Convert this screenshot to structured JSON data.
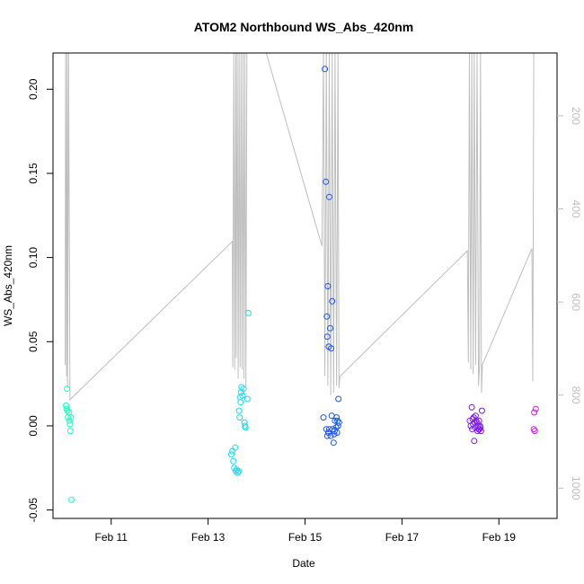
{
  "chart_data": {
    "type": "scatter",
    "title": "ATOM2 Northbound WS_Abs_420nm",
    "xlabel": "Date",
    "ylabel": "WS_Abs_420nm",
    "x_ticks": [
      {
        "value": 11,
        "label": "Feb 11"
      },
      {
        "value": 13,
        "label": "Feb 13"
      },
      {
        "value": 15,
        "label": "Feb 15"
      },
      {
        "value": 17,
        "label": "Feb 17"
      },
      {
        "value": 19,
        "label": "Feb 19"
      }
    ],
    "y_ticks": [
      {
        "value": -0.05,
        "label": "-0.05"
      },
      {
        "value": 0.0,
        "label": "0.00"
      },
      {
        "value": 0.05,
        "label": "0.05"
      },
      {
        "value": 0.1,
        "label": "0.10"
      },
      {
        "value": 0.15,
        "label": "0.15"
      },
      {
        "value": 0.2,
        "label": "0.20"
      }
    ],
    "y2_ticks": [
      {
        "value": 200,
        "label": "200"
      },
      {
        "value": 400,
        "label": "400"
      },
      {
        "value": 600,
        "label": "600"
      },
      {
        "value": 800,
        "label": "800"
      },
      {
        "value": 1000,
        "label": "1000"
      }
    ],
    "xlim": [
      9.8,
      20.2
    ],
    "ylim": [
      -0.055,
      0.2215
    ],
    "y2lim": [
      1065,
      65
    ],
    "grid": false,
    "secondary_color": "#bebebe",
    "point_groups": [
      {
        "color": "#1AFFBF",
        "points": [
          [
            10.07,
            0.012
          ],
          [
            10.08,
            0.01
          ],
          [
            10.09,
            0.022
          ],
          [
            10.1,
            0.009
          ],
          [
            10.11,
            0.005
          ],
          [
            10.13,
            0.008
          ],
          [
            10.14,
            0.003
          ],
          [
            10.15,
            0.001
          ],
          [
            10.16,
            -0.003
          ],
          [
            10.17,
            0.005
          ],
          [
            10.18,
            -0.044
          ]
        ]
      },
      {
        "color": "#1ADBF2",
        "points": [
          [
            13.48,
            -0.017
          ],
          [
            13.5,
            -0.015
          ],
          [
            13.52,
            -0.021
          ],
          [
            13.54,
            -0.025
          ],
          [
            13.56,
            -0.013
          ],
          [
            13.57,
            -0.027
          ],
          [
            13.59,
            -0.026
          ],
          [
            13.61,
            -0.028
          ],
          [
            13.63,
            -0.027
          ],
          [
            13.64,
            0.009
          ],
          [
            13.65,
            0.005
          ],
          [
            13.66,
            0.017
          ],
          [
            13.67,
            0.014
          ],
          [
            13.68,
            0.02
          ],
          [
            13.69,
            0.023
          ],
          [
            13.71,
            0.018
          ],
          [
            13.73,
            0.022
          ],
          [
            13.75,
            0.002
          ],
          [
            13.76,
            0.0
          ],
          [
            13.77,
            -0.001
          ],
          [
            13.81,
            0.016
          ],
          [
            13.83,
            0.067
          ]
        ]
      },
      {
        "color": "#1A57EB",
        "points": [
          [
            15.38,
            0.005
          ],
          [
            15.41,
            0.212
          ],
          [
            15.43,
            0.145
          ],
          [
            15.45,
            0.065
          ],
          [
            15.46,
            0.053
          ],
          [
            15.47,
            0.083
          ],
          [
            15.49,
            0.047
          ],
          [
            15.5,
            0.136
          ],
          [
            15.52,
            0.058
          ],
          [
            15.54,
            0.046
          ],
          [
            15.56,
            0.074
          ],
          [
            15.44,
            -0.002
          ],
          [
            15.46,
            -0.006
          ],
          [
            15.48,
            -0.004
          ],
          [
            15.5,
            -0.002
          ],
          [
            15.53,
            -0.006
          ],
          [
            15.55,
            0.006
          ],
          [
            15.57,
            -0.002
          ],
          [
            15.59,
            -0.01
          ],
          [
            15.6,
            -0.005
          ],
          [
            15.61,
            -0.003
          ],
          [
            15.62,
            0.003
          ],
          [
            15.64,
            -0.001
          ],
          [
            15.65,
            0.005
          ],
          [
            15.66,
            -0.004
          ],
          [
            15.67,
            0.003
          ],
          [
            15.68,
            0.0
          ],
          [
            15.69,
            0.016
          ],
          [
            15.7,
            0.002
          ]
        ]
      },
      {
        "color": "#7F1AEB",
        "points": [
          [
            18.4,
            0.003
          ],
          [
            18.42,
            0.0
          ],
          [
            18.44,
            0.011
          ],
          [
            18.45,
            -0.002
          ],
          [
            18.46,
            0.004
          ],
          [
            18.47,
            0.001
          ],
          [
            18.48,
            0.005
          ],
          [
            18.49,
            -0.009
          ],
          [
            18.5,
            0.002
          ],
          [
            18.51,
            -0.001
          ],
          [
            18.52,
            0.006
          ],
          [
            18.53,
            0.003
          ],
          [
            18.55,
            0.002
          ],
          [
            18.56,
            -0.003
          ],
          [
            18.57,
            0.0
          ],
          [
            18.58,
            -0.002
          ],
          [
            18.59,
            0.003
          ],
          [
            18.6,
            -0.002
          ],
          [
            18.61,
            0.0
          ],
          [
            18.62,
            -0.001
          ],
          [
            18.63,
            -0.003
          ],
          [
            18.65,
            0.009
          ]
        ]
      },
      {
        "color": "#D21AEB",
        "points": [
          [
            19.72,
            -0.002
          ],
          [
            19.73,
            0.008
          ],
          [
            19.74,
            -0.003
          ],
          [
            19.76,
            0.01
          ]
        ]
      }
    ],
    "secondary_line": {
      "color": "#bebebe",
      "points": [
        [
          10.05,
          735
        ],
        [
          10.06,
          50
        ],
        [
          10.08,
          760
        ],
        [
          10.09,
          50
        ],
        [
          10.1,
          785
        ],
        [
          10.12,
          50
        ],
        [
          10.15,
          810
        ],
        [
          13.5,
          470
        ],
        [
          13.51,
          740
        ],
        [
          13.53,
          50
        ],
        [
          13.55,
          745
        ],
        [
          13.57,
          50
        ],
        [
          13.58,
          720
        ],
        [
          13.6,
          50
        ],
        [
          13.62,
          765
        ],
        [
          13.64,
          50
        ],
        [
          13.66,
          740
        ],
        [
          13.68,
          50
        ],
        [
          13.7,
          745
        ],
        [
          13.72,
          50
        ],
        [
          13.74,
          765
        ],
        [
          13.76,
          50
        ],
        [
          13.78,
          785
        ],
        [
          13.8,
          50
        ],
        [
          14.2,
          50
        ],
        [
          15.35,
          480
        ],
        [
          15.38,
          50
        ],
        [
          15.41,
          760
        ],
        [
          15.44,
          50
        ],
        [
          15.47,
          780
        ],
        [
          15.5,
          50
        ],
        [
          15.53,
          800
        ],
        [
          15.56,
          50
        ],
        [
          15.59,
          795
        ],
        [
          15.62,
          50
        ],
        [
          15.65,
          780
        ],
        [
          15.68,
          50
        ],
        [
          15.7,
          785
        ],
        [
          15.72,
          760
        ],
        [
          18.35,
          490
        ],
        [
          18.37,
          730
        ],
        [
          18.39,
          50
        ],
        [
          18.42,
          745
        ],
        [
          18.44,
          50
        ],
        [
          18.47,
          755
        ],
        [
          18.49,
          50
        ],
        [
          18.52,
          735
        ],
        [
          18.55,
          50
        ],
        [
          18.58,
          780
        ],
        [
          18.6,
          740
        ],
        [
          18.62,
          50
        ],
        [
          18.64,
          795
        ],
        [
          18.66,
          735
        ],
        [
          19.68,
          485
        ],
        [
          19.7,
          770
        ],
        [
          19.72,
          50
        ]
      ]
    }
  }
}
